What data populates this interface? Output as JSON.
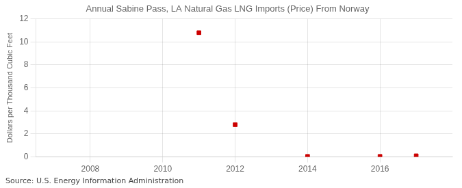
{
  "chart_data": {
    "type": "scatter",
    "title": "Annual Sabine Pass, LA Natural Gas LNG Imports (Price) From Norway",
    "y_label": "Dollars per Thousand Cubic Feet",
    "annotations": [
      "Source: U.S. Energy Information Administration"
    ],
    "x": [
      2011,
      2012,
      2014,
      2016,
      2017
    ],
    "values": [
      10.8,
      2.8,
      0.05,
      0.05,
      0.1
    ],
    "color": "#cc0000",
    "marker": "square",
    "xlim": [
      2006.5,
      2018
    ],
    "xticks": [
      2008,
      2010,
      2012,
      2014,
      2016
    ],
    "ylim": [
      0,
      12
    ],
    "yticks": [
      0,
      2,
      4,
      6,
      8,
      10,
      12
    ],
    "grid": true
  }
}
